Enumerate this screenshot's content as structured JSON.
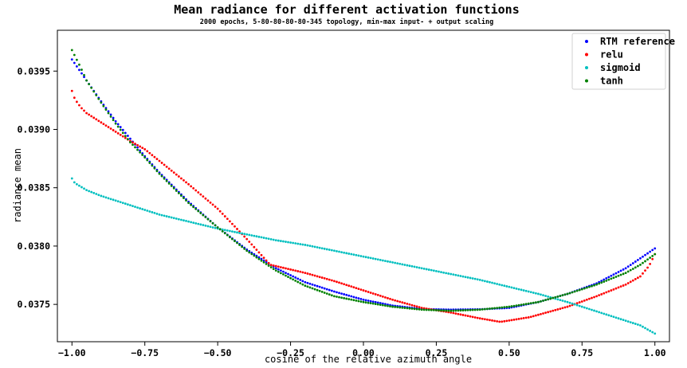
{
  "chart_data": {
    "type": "scatter",
    "title": "Mean radiance for different activation functions",
    "subtitle": "2000 epochs, 5-80-80-80-80-345 topology, min-max input- + output scaling",
    "xlabel": "cosine of the relative azimuth angle",
    "ylabel": "radiance mean",
    "xlim": [
      -1.05,
      1.05
    ],
    "ylim": [
      0.03718,
      0.03985
    ],
    "xticks": [
      -1.0,
      -0.75,
      -0.5,
      -0.25,
      0.0,
      0.25,
      0.5,
      0.75,
      1.0
    ],
    "xtick_labels": [
      "−1.00",
      "−0.75",
      "−0.50",
      "−0.25",
      "0.00",
      "0.25",
      "0.50",
      "0.75",
      "1.00"
    ],
    "yticks": [
      0.0375,
      0.038,
      0.0385,
      0.039,
      0.0395
    ],
    "ytick_labels": [
      "0.0375",
      "0.0380",
      "0.0385",
      "0.0390",
      "0.0395"
    ],
    "grid": false,
    "legend_position": "top-right",
    "series": [
      {
        "name": "RTM reference",
        "color": "#0000ff",
        "x": [
          -1.0,
          -0.95,
          -0.9,
          -0.85,
          -0.8,
          -0.75,
          -0.7,
          -0.6,
          -0.5,
          -0.4,
          -0.3,
          -0.2,
          -0.1,
          0.0,
          0.1,
          0.2,
          0.3,
          0.4,
          0.5,
          0.6,
          0.7,
          0.8,
          0.9,
          1.0
        ],
        "y": [
          0.0396,
          0.03942,
          0.03924,
          0.03907,
          0.03892,
          0.03877,
          0.03863,
          0.03838,
          0.03816,
          0.03797,
          0.03781,
          0.03769,
          0.03761,
          0.03754,
          0.03749,
          0.03746,
          0.037455,
          0.037458,
          0.03747,
          0.03752,
          0.03759,
          0.03768,
          0.03781,
          0.03798
        ]
      },
      {
        "name": "relu",
        "color": "#ff0000",
        "x": [
          -1.0,
          -0.99,
          -0.97,
          -0.95,
          -0.9,
          -0.85,
          -0.8,
          -0.75,
          -0.72,
          -0.6,
          -0.5,
          -0.4,
          -0.32,
          -0.2,
          -0.1,
          0.0,
          0.1,
          0.2,
          0.3,
          0.4,
          0.47,
          0.57,
          0.7,
          0.8,
          0.9,
          0.95,
          0.98,
          1.0
        ],
        "y": [
          0.03933,
          0.03926,
          0.03919,
          0.03914,
          0.03906,
          0.03898,
          0.0389,
          0.03883,
          0.03877,
          0.03853,
          0.03832,
          0.03806,
          0.03784,
          0.03777,
          0.0377,
          0.03762,
          0.03754,
          0.03747,
          0.03743,
          0.03738,
          0.03735,
          0.03739,
          0.03748,
          0.03757,
          0.03767,
          0.03774,
          0.03783,
          0.03793
        ]
      },
      {
        "name": "sigmoid",
        "color": "#00bfbf",
        "x": [
          -1.0,
          -0.99,
          -0.97,
          -0.95,
          -0.9,
          -0.8,
          -0.7,
          -0.6,
          -0.5,
          -0.4,
          -0.3,
          -0.2,
          -0.1,
          0.0,
          0.1,
          0.2,
          0.3,
          0.4,
          0.5,
          0.6,
          0.7,
          0.8,
          0.9,
          0.95,
          1.0
        ],
        "y": [
          0.03858,
          0.03854,
          0.03851,
          0.03848,
          0.03843,
          0.03835,
          0.03827,
          0.03821,
          0.03815,
          0.0381,
          0.03805,
          0.03801,
          0.03796,
          0.03791,
          0.03786,
          0.03781,
          0.03776,
          0.03771,
          0.03765,
          0.03759,
          0.03752,
          0.03744,
          0.03736,
          0.03732,
          0.03725
        ]
      },
      {
        "name": "tanh",
        "color": "#008000",
        "x": [
          -1.0,
          -0.97,
          -0.95,
          -0.9,
          -0.85,
          -0.8,
          -0.75,
          -0.7,
          -0.6,
          -0.5,
          -0.4,
          -0.3,
          -0.2,
          -0.1,
          0.0,
          0.1,
          0.2,
          0.3,
          0.4,
          0.5,
          0.6,
          0.7,
          0.8,
          0.9,
          0.95,
          1.0
        ],
        "y": [
          0.03968,
          0.03953,
          0.03942,
          0.03923,
          0.03905,
          0.03889,
          0.03876,
          0.03862,
          0.03837,
          0.03816,
          0.03796,
          0.03779,
          0.03766,
          0.03757,
          0.03752,
          0.03748,
          0.037455,
          0.037445,
          0.037455,
          0.03748,
          0.03752,
          0.03759,
          0.03767,
          0.03777,
          0.03784,
          0.03793
        ]
      }
    ]
  }
}
